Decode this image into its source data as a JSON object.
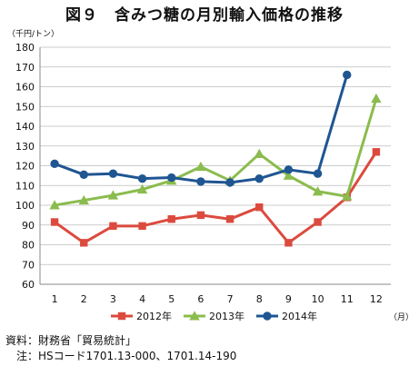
{
  "title": "図９　含みつ糖の月別輸入価格の推移",
  "source": "資料：財務省「貿易統計」",
  "note": "　注：HSコード1701.13-000、1701.14-190",
  "chart_data": {
    "type": "line",
    "ylabel": "（千円/トン）",
    "xlabel": "（月）",
    "categories": [
      "1",
      "2",
      "3",
      "4",
      "5",
      "6",
      "7",
      "8",
      "9",
      "10",
      "11",
      "12"
    ],
    "ylim": [
      60,
      180
    ],
    "yticks": [
      60,
      70,
      80,
      90,
      100,
      110,
      120,
      130,
      140,
      150,
      160,
      170,
      180
    ],
    "grid": "horizontal",
    "legend_position": "bottom",
    "series": [
      {
        "name": "2012年",
        "color": "#dc4a3e",
        "marker": "square",
        "values": [
          91.5,
          81,
          89.5,
          89.5,
          93,
          95,
          93,
          99,
          81,
          91.5,
          104,
          127
        ]
      },
      {
        "name": "2013年",
        "color": "#8bbc4e",
        "marker": "triangle",
        "values": [
          100,
          102.5,
          105,
          108,
          112.5,
          119.5,
          112.5,
          126,
          115,
          107,
          104.5,
          154
        ]
      },
      {
        "name": "2014年",
        "color": "#1f5592",
        "marker": "circle",
        "values": [
          121,
          115.5,
          116,
          113.5,
          114,
          112,
          111.5,
          113.5,
          118,
          116,
          166,
          null
        ]
      }
    ]
  }
}
